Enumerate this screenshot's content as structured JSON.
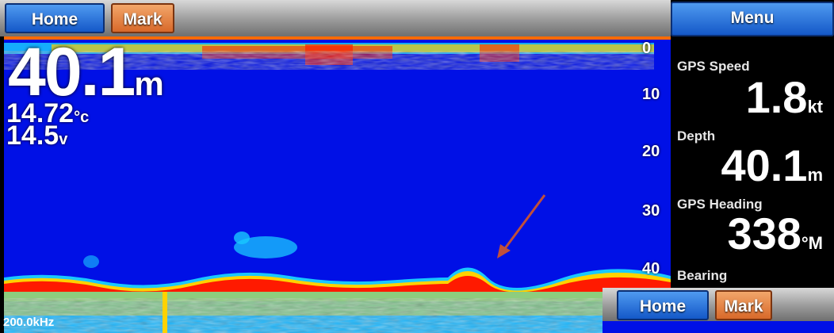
{
  "topbar": {
    "home_label": "Home",
    "mark_label": "Mark"
  },
  "sonar": {
    "depth_scale": [
      "0",
      "10",
      "20",
      "30",
      "40"
    ],
    "depth_value": "40.1",
    "depth_unit": "m",
    "temperature_value": "14.72",
    "temperature_unit": "°c",
    "voltage_value": "14.5",
    "voltage_unit": "v",
    "frequency": "200.0kHz"
  },
  "panel": {
    "menu_label": "Menu",
    "gps_speed": {
      "label": "GPS Speed",
      "value": "1.8",
      "unit": "kt"
    },
    "depth": {
      "label": "Depth",
      "value": "40.1",
      "unit": "m"
    },
    "gps_heading": {
      "label": "GPS Heading",
      "value": "338",
      "unit": "°M"
    },
    "bearing": {
      "label": "Bearing"
    }
  },
  "inset": {
    "home_label": "Home",
    "mark_label": "Mark"
  },
  "colors": {
    "water": "#0010e6",
    "strong_return": "#ff1a00",
    "medium_return": "#ffd200",
    "weak_return": "#19c8ff",
    "annotation_arrow": "#c0503a"
  }
}
